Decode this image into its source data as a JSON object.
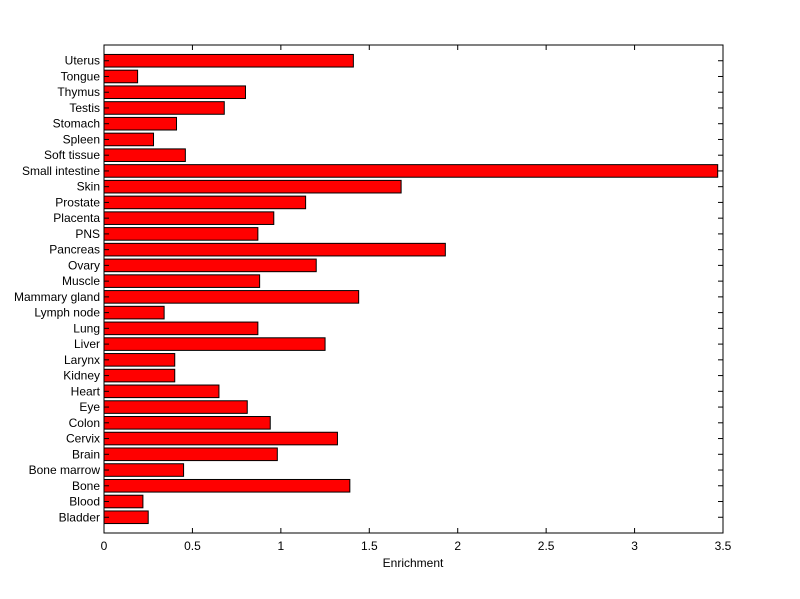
{
  "chart_data": {
    "type": "bar",
    "orientation": "horizontal",
    "categories": [
      "Uterus",
      "Tongue",
      "Thymus",
      "Testis",
      "Stomach",
      "Spleen",
      "Soft tissue",
      "Small intestine",
      "Skin",
      "Prostate",
      "Placenta",
      "PNS",
      "Pancreas",
      "Ovary",
      "Muscle",
      "Mammary gland",
      "Lymph node",
      "Lung",
      "Liver",
      "Larynx",
      "Kidney",
      "Heart",
      "Eye",
      "Colon",
      "Cervix",
      "Brain",
      "Bone marrow",
      "Bone",
      "Blood",
      "Bladder"
    ],
    "values": [
      1.41,
      0.19,
      0.8,
      0.68,
      0.41,
      0.28,
      0.46,
      3.47,
      1.68,
      1.14,
      0.96,
      0.87,
      1.93,
      1.2,
      0.88,
      1.44,
      0.34,
      0.87,
      1.25,
      0.4,
      0.4,
      0.65,
      0.81,
      0.94,
      1.32,
      0.98,
      0.45,
      1.39,
      0.22,
      0.25
    ],
    "title": "",
    "xlabel": "Enrichment",
    "ylabel": "",
    "xlim": [
      0,
      3.5
    ],
    "xticks": [
      0,
      0.5,
      1,
      1.5,
      2,
      2.5,
      3,
      3.5
    ],
    "xtick_labels": [
      "0",
      "0.5",
      "1",
      "1.5",
      "2",
      "2.5",
      "3",
      "3.5"
    ],
    "bar_color": "#ff0000",
    "edge_color": "#000000",
    "grid": false,
    "legend": "none"
  }
}
